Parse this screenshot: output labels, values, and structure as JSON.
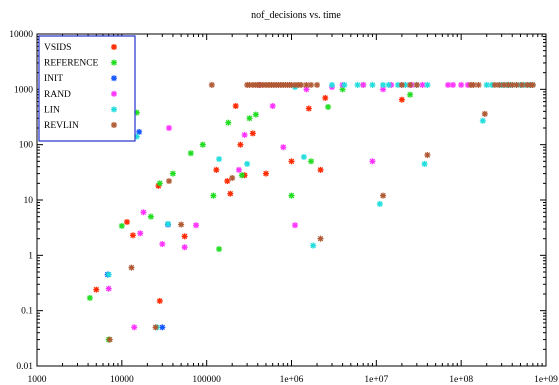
{
  "chart_data": {
    "type": "scatter",
    "title": "nof_decisions vs. time",
    "xlabel": "",
    "ylabel": "",
    "xscale": "log",
    "yscale": "log",
    "xlim": [
      1000,
      1000000000
    ],
    "ylim": [
      0.01,
      10000
    ],
    "x_ticks": [
      {
        "v": 1000,
        "label": "1000"
      },
      {
        "v": 10000,
        "label": "10000"
      },
      {
        "v": 100000,
        "label": "100000"
      },
      {
        "v": 1000000,
        "label": "1e+06"
      },
      {
        "v": 10000000,
        "label": "1e+07"
      },
      {
        "v": 100000000,
        "label": "1e+08"
      },
      {
        "v": 1000000000,
        "label": "1e+09"
      }
    ],
    "y_ticks": [
      {
        "v": 0.01,
        "label": "0.01"
      },
      {
        "v": 0.1,
        "label": "0.1"
      },
      {
        "v": 1,
        "label": "1"
      },
      {
        "v": 10,
        "label": "10"
      },
      {
        "v": 100,
        "label": "100"
      },
      {
        "v": 1000,
        "label": "1000"
      },
      {
        "v": 10000,
        "label": "10000"
      }
    ],
    "grid": false,
    "legend_position": "top-left",
    "series": [
      {
        "name": "VSIDS",
        "color": "#ff2a00",
        "points": [
          [
            5000,
            0.24
          ],
          [
            11500,
            4.0
          ],
          [
            13500,
            2.3
          ],
          [
            28000,
            0.15
          ],
          [
            27000,
            18
          ],
          [
            55000,
            2.2
          ],
          [
            130000,
            35
          ],
          [
            175000,
            22
          ],
          [
            190000,
            13
          ],
          [
            220000,
            500
          ],
          [
            250000,
            100
          ],
          [
            280000,
            28
          ],
          [
            350000,
            160
          ],
          [
            500000,
            30
          ],
          [
            1000000,
            50
          ],
          [
            1600000,
            450
          ],
          [
            2200000,
            35
          ],
          [
            2500000,
            700
          ],
          [
            20000000,
            650
          ]
        ]
      },
      {
        "name": "REFERENCE",
        "color": "#22dd22",
        "points": [
          [
            4200,
            0.17
          ],
          [
            7000,
            0.03
          ],
          [
            10000,
            3.4
          ],
          [
            15000,
            380
          ],
          [
            22000,
            5.0
          ],
          [
            28000,
            20
          ],
          [
            40000,
            30
          ],
          [
            65000,
            70
          ],
          [
            90000,
            100
          ],
          [
            120000,
            12
          ],
          [
            140000,
            1.3
          ],
          [
            180000,
            250
          ],
          [
            260000,
            28
          ],
          [
            320000,
            300
          ],
          [
            380000,
            350
          ],
          [
            1000000,
            12
          ],
          [
            1700000,
            50
          ],
          [
            2700000,
            480
          ],
          [
            4000000,
            1000
          ],
          [
            7000000,
            1200
          ],
          [
            25000000,
            800
          ]
        ]
      },
      {
        "name": "INIT",
        "color": "#1155ff",
        "points": [
          [
            6800,
            0.45
          ],
          [
            16000,
            170
          ],
          [
            30000,
            0.05
          ],
          [
            35000,
            3.6
          ]
        ]
      },
      {
        "name": "RAND",
        "color": "#ff33ff",
        "points": [
          [
            2200,
            1200
          ],
          [
            7000,
            0.25
          ],
          [
            14000,
            0.05
          ],
          [
            16500,
            2.5
          ],
          [
            18000,
            6
          ],
          [
            30000,
            1.6
          ],
          [
            36000,
            200
          ],
          [
            55000,
            1.4
          ],
          [
            75000,
            3.5
          ],
          [
            240000,
            35
          ],
          [
            280000,
            150
          ],
          [
            420000,
            1200
          ],
          [
            600000,
            500
          ],
          [
            800000,
            90
          ],
          [
            1100000,
            3.5
          ],
          [
            1500000,
            1000
          ],
          [
            3000000,
            1100
          ],
          [
            4000000,
            1200
          ],
          [
            7000000,
            1200
          ],
          [
            9000000,
            50
          ],
          [
            12000000,
            1000
          ],
          [
            15000000,
            1200
          ],
          [
            20000000,
            1200
          ],
          [
            26000000,
            1200
          ],
          [
            30000000,
            1200
          ],
          [
            35000000,
            1200
          ],
          [
            70000000,
            1200
          ],
          [
            80000000,
            1200
          ],
          [
            100000000,
            1200
          ],
          [
            120000000,
            1200
          ]
        ]
      },
      {
        "name": "LIN",
        "color": "#22dddd",
        "points": [
          [
            7000,
            0.45
          ],
          [
            15000,
            140
          ],
          [
            26000,
            0.05
          ],
          [
            35000,
            3.7
          ],
          [
            140000,
            55
          ],
          [
            300000,
            45
          ],
          [
            1100000,
            1100
          ],
          [
            1400000,
            60
          ],
          [
            1800000,
            1.5
          ],
          [
            3000000,
            1200
          ],
          [
            4200000,
            1200
          ],
          [
            6000000,
            1200
          ],
          [
            9000000,
            1200
          ],
          [
            12000000,
            1200
          ],
          [
            14000000,
            1200
          ],
          [
            18000000,
            1200
          ],
          [
            22000000,
            1200
          ],
          [
            30000000,
            1200
          ],
          [
            37000000,
            45
          ],
          [
            40000000,
            1200
          ],
          [
            11000000,
            8.5
          ],
          [
            200000000,
            1200
          ],
          [
            230000000,
            1200
          ],
          [
            280000000,
            1200
          ],
          [
            300000000,
            1200
          ],
          [
            320000000,
            1200
          ],
          [
            350000000,
            1200
          ],
          [
            380000000,
            1200
          ],
          [
            400000000,
            1200
          ],
          [
            450000000,
            1200
          ],
          [
            500000000,
            1200
          ],
          [
            550000000,
            1200
          ],
          [
            600000000,
            1200
          ],
          [
            650000000,
            1200
          ],
          [
            700000000,
            1200
          ],
          [
            180000000,
            270
          ]
        ]
      },
      {
        "name": "REVLIN",
        "color": "#b05a35",
        "points": [
          [
            6800,
            1200
          ],
          [
            7200,
            0.03
          ],
          [
            13000,
            0.6
          ],
          [
            25000,
            0.05
          ],
          [
            36000,
            22
          ],
          [
            50000,
            3.6
          ],
          [
            115000,
            1200
          ],
          [
            200000,
            25
          ],
          [
            300000,
            1200
          ],
          [
            320000,
            1200
          ],
          [
            350000,
            1200
          ],
          [
            380000,
            1200
          ],
          [
            400000,
            1200
          ],
          [
            430000,
            1200
          ],
          [
            460000,
            1200
          ],
          [
            500000,
            1200
          ],
          [
            540000,
            1200
          ],
          [
            580000,
            1200
          ],
          [
            620000,
            1200
          ],
          [
            660000,
            1200
          ],
          [
            700000,
            1200
          ],
          [
            750000,
            1200
          ],
          [
            800000,
            1200
          ],
          [
            850000,
            1200
          ],
          [
            900000,
            1200
          ],
          [
            950000,
            1200
          ],
          [
            1000000,
            1200
          ],
          [
            1100000,
            1200
          ],
          [
            1200000,
            1200
          ],
          [
            2200000,
            2.0
          ],
          [
            12000000,
            12
          ],
          [
            20000000,
            1200
          ],
          [
            25000000,
            1200
          ],
          [
            30000000,
            1200
          ],
          [
            40000000,
            65
          ],
          [
            130000000,
            1200
          ],
          [
            140000000,
            1200
          ],
          [
            160000000,
            1200
          ],
          [
            190000000,
            360
          ],
          [
            250000000,
            1200
          ],
          [
            280000000,
            1200
          ],
          [
            320000000,
            1200
          ],
          [
            360000000,
            1200
          ],
          [
            400000000,
            1200
          ],
          [
            450000000,
            1200
          ],
          [
            520000000,
            1200
          ],
          [
            600000000,
            1200
          ],
          [
            660000000,
            1200
          ],
          [
            700000000,
            1200
          ],
          [
            1300000,
            1200
          ],
          [
            1500000,
            1200
          ],
          [
            1700000,
            1200
          ],
          [
            2000000,
            1200
          ]
        ]
      }
    ]
  }
}
